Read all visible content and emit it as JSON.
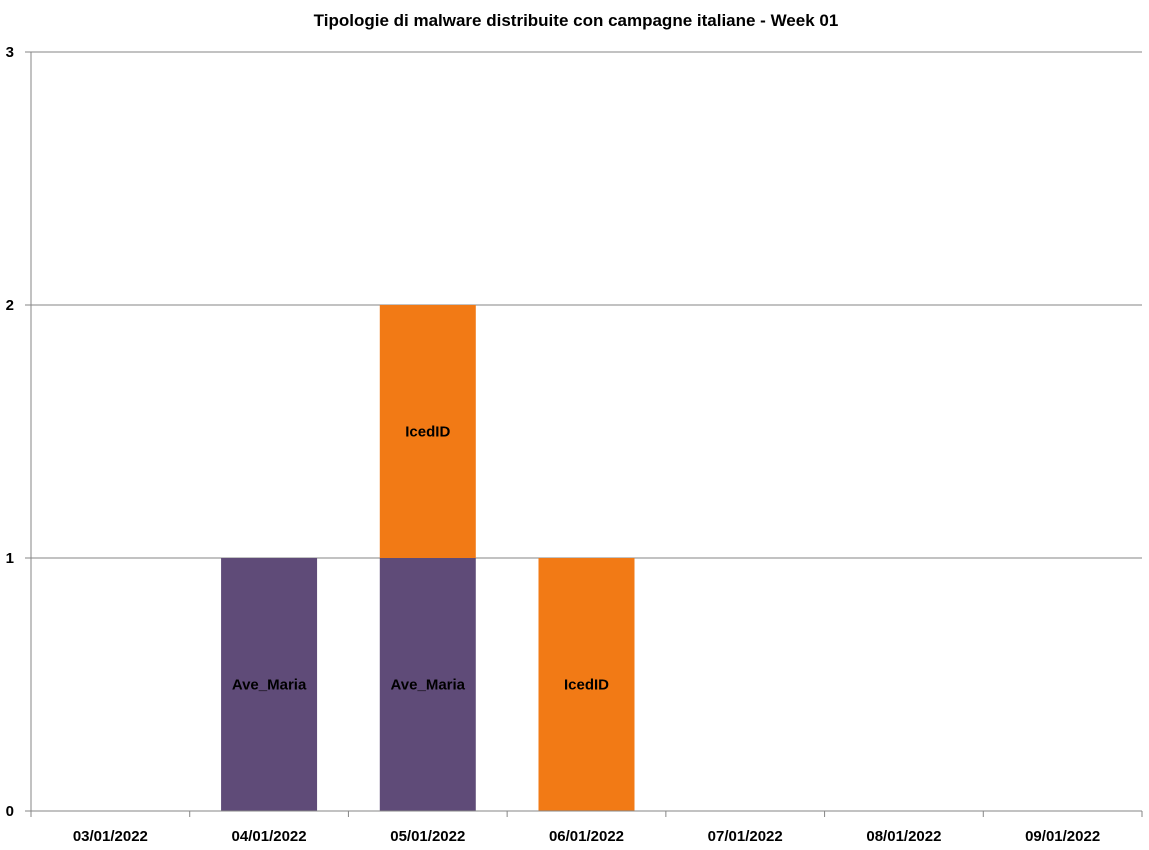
{
  "chart_data": {
    "type": "bar",
    "stacked": true,
    "title": "Tipologie di malware distribuite con campagne italiane - Week 01",
    "xlabel": "",
    "ylabel": "",
    "categories": [
      "03/01/2022",
      "04/01/2022",
      "05/01/2022",
      "06/01/2022",
      "07/01/2022",
      "08/01/2022",
      "09/01/2022"
    ],
    "ylim": [
      0,
      3
    ],
    "yticks": [
      "0",
      "1",
      "2",
      "3"
    ],
    "grid": true,
    "legend": "none",
    "series": [
      {
        "name": "Ave_Maria",
        "color": "#5f4b78",
        "values": [
          0,
          1,
          1,
          0,
          0,
          0,
          0
        ]
      },
      {
        "name": "IcedID",
        "color": "#f27a15",
        "values": [
          0,
          0,
          1,
          1,
          0,
          0,
          0
        ]
      }
    ]
  }
}
